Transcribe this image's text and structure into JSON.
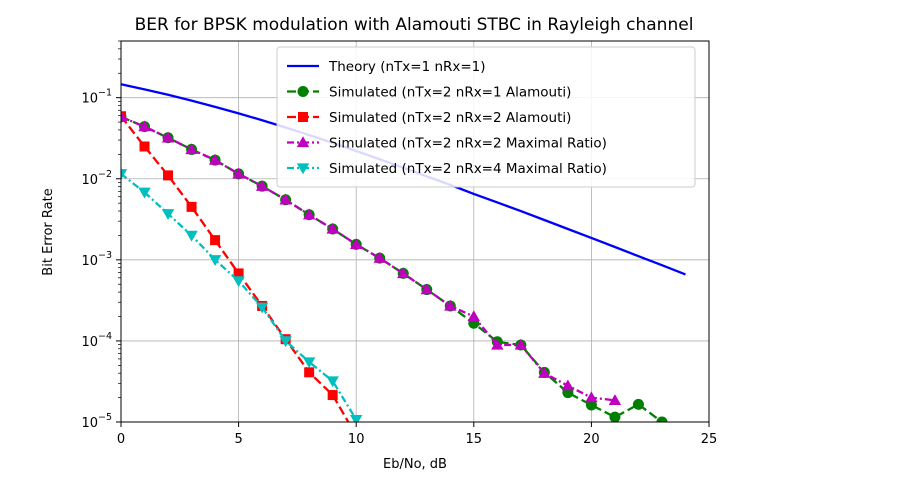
{
  "chart_data": {
    "type": "line",
    "title": "BER for BPSK modulation with Alamouti STBC in Rayleigh channel",
    "xlabel": "Eb/No, dB",
    "ylabel": "Bit Error Rate",
    "xlim": [
      0,
      25
    ],
    "ylim": [
      1e-05,
      0.5
    ],
    "yscale": "log",
    "grid": true,
    "legend_position": "top-right",
    "x_ticks": [
      "0",
      "5",
      "10",
      "15",
      "20",
      "25"
    ],
    "y_ticks": [
      {
        "value": 0.1,
        "base": "10",
        "exp": "−1"
      },
      {
        "value": 0.01,
        "base": "10",
        "exp": "−2"
      },
      {
        "value": 0.001,
        "base": "10",
        "exp": "−3"
      },
      {
        "value": 0.0001,
        "base": "10",
        "exp": "−4"
      },
      {
        "value": 1e-05,
        "base": "10",
        "exp": "−5"
      }
    ],
    "series": [
      {
        "name": "Theory (nTx=1 nRx=1)",
        "color": "#0000ff",
        "dash": "solid",
        "marker": "none",
        "x": [
          0,
          1,
          2,
          3,
          4,
          5,
          6,
          7,
          8,
          9,
          10,
          11,
          12,
          13,
          14,
          15,
          16,
          17,
          18,
          19,
          20,
          21,
          22,
          23,
          24
        ],
        "y": [
          0.1464,
          0.1267,
          0.1085,
          0.0919,
          0.0771,
          0.0641,
          0.0527,
          0.0429,
          0.0346,
          0.0277,
          0.022,
          0.0174,
          0.0137,
          0.0107,
          0.0084,
          0.0065,
          0.0051,
          0.004,
          0.0031,
          0.0024,
          0.00186,
          0.00144,
          0.00111,
          0.00086,
          0.00066
        ]
      },
      {
        "name": "Simulated (nTx=2 nRx=1 Alamouti)",
        "color": "#008000",
        "dash": "dashed",
        "marker": "circle",
        "x": [
          0,
          1,
          2,
          3,
          4,
          5,
          6,
          7,
          8,
          9,
          10,
          11,
          12,
          13,
          14,
          15,
          16,
          17,
          18,
          19,
          20,
          21,
          22,
          23
        ],
        "y": [
          0.058,
          0.044,
          0.032,
          0.023,
          0.017,
          0.0115,
          0.0081,
          0.0055,
          0.0036,
          0.0024,
          0.00155,
          0.00105,
          0.00068,
          0.00043,
          0.00027,
          0.000165,
          9.75e-05,
          8.9e-05,
          4.1e-05,
          2.3e-05,
          1.62e-05,
          1.15e-05,
          1.65e-05,
          1e-05
        ]
      },
      {
        "name": "Simulated (nTx=2 nRx=2 Alamouti)",
        "color": "#ff0000",
        "dash": "dashed",
        "marker": "square",
        "x": [
          0,
          1,
          2,
          3,
          4,
          5,
          6,
          7,
          8,
          9,
          10
        ],
        "y": [
          0.059,
          0.025,
          0.011,
          0.0045,
          0.00175,
          0.00068,
          0.00027,
          0.000105,
          4.1e-05,
          2.15e-05,
          6.8e-06
        ]
      },
      {
        "name": "Simulated (nTx=2 nRx=2 Maximal Ratio)",
        "color": "#bf00bf",
        "dash": "dashdot",
        "marker": "triangle-up",
        "x": [
          0,
          1,
          2,
          3,
          4,
          5,
          6,
          7,
          8,
          9,
          10,
          11,
          12,
          13,
          14,
          15,
          16,
          17,
          18,
          19,
          20,
          21
        ],
        "y": [
          0.058,
          0.044,
          0.032,
          0.023,
          0.017,
          0.0115,
          0.0081,
          0.0055,
          0.0036,
          0.0024,
          0.00155,
          0.00105,
          0.00068,
          0.00043,
          0.00027,
          0.0002,
          8.92e-05,
          8.92e-05,
          4e-05,
          2.8e-05,
          2e-05,
          1.85e-05
        ]
      },
      {
        "name": "Simulated (nTx=2 nRx=4 Maximal Ratio)",
        "color": "#00bfbf",
        "dash": "dashdot",
        "marker": "triangle-down",
        "x": [
          0,
          1,
          2,
          3,
          4,
          5,
          6,
          7,
          8,
          9,
          10
        ],
        "y": [
          0.0115,
          0.0068,
          0.0037,
          0.002,
          0.001,
          0.00055,
          0.00026,
          0.0001,
          5.5e-05,
          3.2e-05,
          1.07e-05
        ]
      }
    ]
  }
}
